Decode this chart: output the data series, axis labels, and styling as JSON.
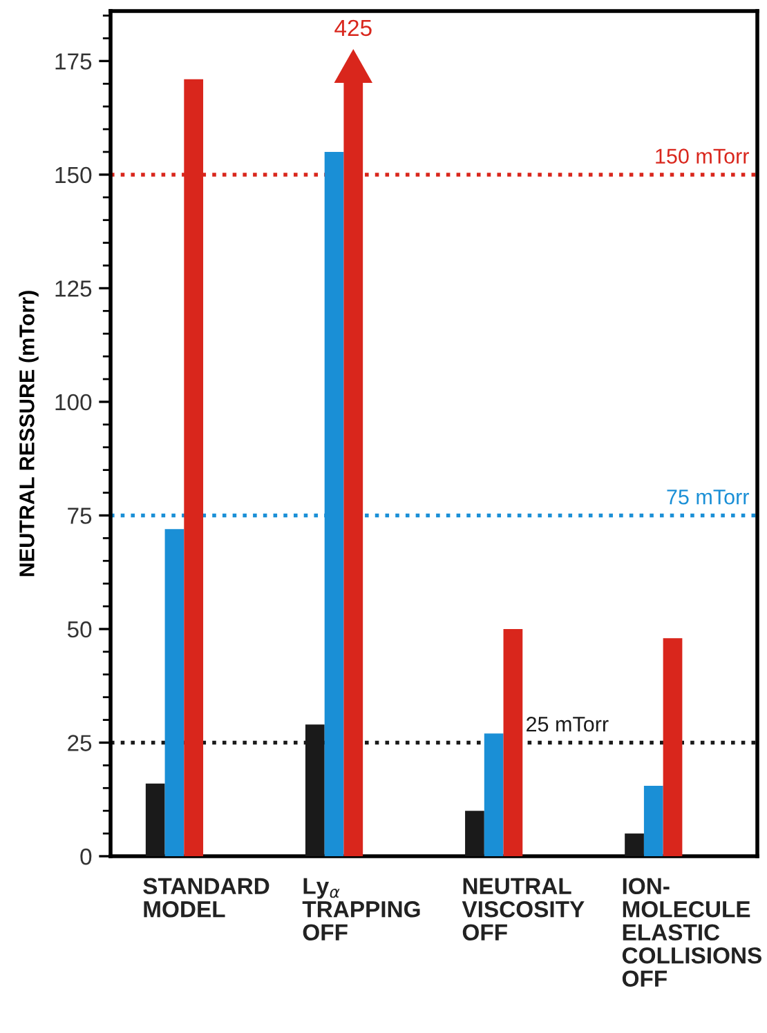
{
  "chart_data": {
    "type": "bar",
    "ylabel": "NEUTRAL RESSURE (mTorr)",
    "categories": [
      "STANDARD\nMODEL",
      "Ly$_{α}$\nTRAPPING\nOFF",
      "NEUTRAL\nVISCOSITY\nOFF",
      "ION-\nMOLECULE\nELASTIC\nCOLLISIONS\nOFF"
    ],
    "series": [
      {
        "color": "#1a1a1a",
        "values": [
          16,
          29,
          10,
          5
        ]
      },
      {
        "color": "#1a8fd6",
        "values": [
          72,
          155,
          27,
          15.5
        ]
      },
      {
        "color": "#d9261c",
        "values": [
          171,
          null,
          50,
          48
        ]
      }
    ],
    "annotations": [
      "425"
    ],
    "ylim": [
      0,
      186
    ],
    "yticks": [
      0,
      25,
      50,
      75,
      100,
      125,
      150,
      175
    ],
    "ref_lines": [
      {
        "axis": "y",
        "value": 150,
        "label": "150 mTorr",
        "color": "#d9261c",
        "line_style": "dotted"
      },
      {
        "axis": "y",
        "value": 75,
        "label": "75 mTorr",
        "color": "#1a8fd6",
        "line_style": "dotted"
      },
      {
        "axis": "y",
        "value": 25,
        "label": "25 mTorr",
        "color": "#1a1a1a",
        "line_style": "dotted"
      }
    ],
    "grid": false,
    "legend": false
  }
}
